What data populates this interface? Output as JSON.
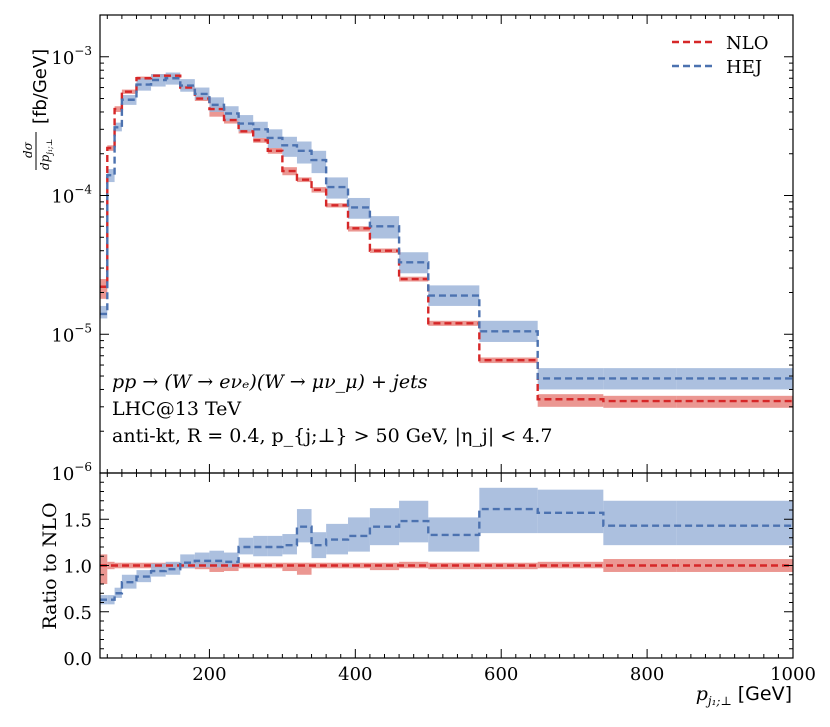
{
  "chart_data": {
    "type": "line",
    "x_edges": [
      50,
      60,
      70,
      80,
      100,
      120,
      140,
      160,
      180,
      200,
      220,
      240,
      260,
      280,
      300,
      320,
      340,
      360,
      390,
      420,
      460,
      500,
      570,
      650,
      740,
      840,
      1000
    ],
    "xlim": [
      50,
      1000
    ],
    "xticks": [
      200,
      400,
      600,
      800,
      1000
    ],
    "xtick_labels": [
      "200",
      "400",
      "600",
      "800",
      "1000"
    ],
    "xlabel_math": "p",
    "xlabel_sub": "j₁;⊥",
    "xlabel_unit": "[GeV]",
    "legend": {
      "position": "top-right",
      "entries": [
        {
          "label": "NLO",
          "color": "#d62728"
        },
        {
          "label": "HEJ",
          "color": "#4c72b0"
        }
      ]
    },
    "annotations": [
      "pp → (W → eνₑ)(W → μν_μ) + jets",
      "LHC@13 TeV",
      "anti-kt, R = 0.4, p_{j;⊥} > 50 GeV, |η_j| < 4.7"
    ],
    "top_panel": {
      "yscale": "log",
      "ylim": [
        1e-06,
        0.002
      ],
      "ytick_labels": [
        {
          "value": 1e-06,
          "mant": "10",
          "exp": "−6"
        },
        {
          "value": 1e-05,
          "mant": "10",
          "exp": "−5"
        },
        {
          "value": 0.0001,
          "mant": "10",
          "exp": "−4"
        },
        {
          "value": 0.001,
          "mant": "10",
          "exp": "−3"
        }
      ],
      "ylabel_frac_num": "dσ",
      "ylabel_frac_den": "dp",
      "ylabel_frac_den_sub": "j₁;⊥",
      "ylabel_unit": "[fb/GeV]",
      "series": [
        {
          "name": "NLO",
          "color": "#d62728",
          "band_color": "#e8857f",
          "values": [
            2.2e-05,
            0.00022,
            0.00042,
            0.00056,
            0.0007,
            0.00073,
            0.00073,
            0.0006,
            0.0005,
            0.00042,
            0.00035,
            0.00029,
            0.00025,
            0.00021,
            0.00015,
            0.00013,
            0.00011,
            8.5e-05,
            5.8e-05,
            4e-05,
            2.5e-05,
            1.2e-05,
            6.5e-06,
            3.4e-06,
            3.3e-06,
            3.3e-06
          ],
          "band_lo": [
            1.8e-05,
            0.00021,
            0.0004,
            0.00054,
            0.00068,
            0.00071,
            0.00071,
            0.00058,
            0.00048,
            0.00037,
            0.00033,
            0.00028,
            0.00024,
            0.0002,
            0.00014,
            0.000125,
            0.000105,
            8.2e-05,
            5.5e-05,
            3.85e-05,
            2.4e-05,
            1.15e-05,
            6.2e-06,
            3e-06,
            2.95e-06,
            2.95e-06
          ],
          "band_hi": [
            2.5e-05,
            0.00023,
            0.00044,
            0.00058,
            0.00072,
            0.00075,
            0.00075,
            0.00062,
            0.00052,
            0.00044,
            0.00036,
            0.0003,
            0.00026,
            0.00022,
            0.00016,
            0.000135,
            0.000115,
            8.8e-05,
            6e-05,
            4.15e-05,
            2.6e-05,
            1.25e-05,
            6.8e-06,
            3.7e-06,
            3.6e-06,
            3.6e-06
          ]
        },
        {
          "name": "HEJ",
          "color": "#4c72b0",
          "band_color": "#9db5d9",
          "values": [
            1.4e-05,
            0.00014,
            0.00031,
            0.00049,
            0.00063,
            0.00068,
            0.0007,
            0.00062,
            0.00054,
            0.00045,
            0.00039,
            0.00033,
            0.0003,
            0.00026,
            0.00023,
            0.00021,
            0.00018,
            0.000115,
            8.2e-05,
            6e-05,
            3.3e-05,
            1.9e-05,
            1.05e-05,
            4.8e-06,
            4.8e-06,
            4.8e-06
          ],
          "band_lo": [
            1.3e-05,
            0.000125,
            0.00029,
            0.00045,
            0.00057,
            0.00061,
            0.00063,
            0.00056,
            0.00049,
            0.0004,
            0.000345,
            0.00029,
            0.00026,
            0.00022,
            0.00019,
            0.00017,
            0.000145,
            9.5e-05,
            6.8e-05,
            4.9e-05,
            2.75e-05,
            1.6e-05,
            8.8e-06,
            4e-06,
            4e-06,
            4e-06
          ],
          "band_hi": [
            1.6e-05,
            0.000155,
            0.000335,
            0.00053,
            0.0007,
            0.00075,
            0.00077,
            0.00069,
            0.0006,
            0.00051,
            0.00044,
            0.00038,
            0.00034,
            0.0003,
            0.000265,
            0.000245,
            0.00021,
            0.000135,
            9.6e-05,
            7.1e-05,
            3.9e-05,
            2.25e-05,
            1.25e-05,
            5.7e-06,
            5.7e-06,
            5.7e-06
          ]
        }
      ]
    },
    "ratio_panel": {
      "ylim": [
        0.0,
        2.0
      ],
      "yticks": [
        0.0,
        0.5,
        1.0,
        1.5
      ],
      "ytick_labels": [
        "0.0",
        "0.5",
        "1.0",
        "1.5"
      ],
      "ylabel": "Ratio to NLO",
      "series": [
        {
          "name": "NLO",
          "color": "#d62728",
          "band_color": "#e8857f",
          "values": [
            1.0,
            1.0,
            1.0,
            1.0,
            1.0,
            1.0,
            1.0,
            1.0,
            1.0,
            1.0,
            1.0,
            1.0,
            1.0,
            1.0,
            1.0,
            1.0,
            1.0,
            1.0,
            1.0,
            1.0,
            1.0,
            1.0,
            1.0,
            1.0,
            1.0,
            1.0
          ],
          "band_lo": [
            0.8,
            0.96,
            0.97,
            0.97,
            0.97,
            0.97,
            0.97,
            0.97,
            0.96,
            0.93,
            0.94,
            0.97,
            0.97,
            0.97,
            0.94,
            0.9,
            0.97,
            0.97,
            0.97,
            0.95,
            0.97,
            0.96,
            0.96,
            0.97,
            0.93,
            0.93
          ],
          "band_hi": [
            1.12,
            1.04,
            1.03,
            1.03,
            1.03,
            1.03,
            1.03,
            1.03,
            1.04,
            1.04,
            1.03,
            1.03,
            1.03,
            1.03,
            1.03,
            1.03,
            1.03,
            1.03,
            1.03,
            1.03,
            1.04,
            1.03,
            1.03,
            1.04,
            1.07,
            1.07
          ]
        },
        {
          "name": "HEJ",
          "color": "#4c72b0",
          "band_color": "#9db5d9",
          "values": [
            0.63,
            0.63,
            0.7,
            0.82,
            0.88,
            0.94,
            0.96,
            1.03,
            1.05,
            1.05,
            1.04,
            1.2,
            1.2,
            1.2,
            1.22,
            1.42,
            1.22,
            1.28,
            1.32,
            1.42,
            1.48,
            1.33,
            1.61,
            1.57,
            1.43,
            1.43
          ],
          "band_lo": [
            0.58,
            0.58,
            0.65,
            0.75,
            0.82,
            0.88,
            0.9,
            0.97,
            0.98,
            0.98,
            0.98,
            1.12,
            1.1,
            1.1,
            1.12,
            1.25,
            1.08,
            1.12,
            1.15,
            1.22,
            1.25,
            1.15,
            1.35,
            1.35,
            1.22,
            1.22
          ],
          "band_hi": [
            0.68,
            0.68,
            0.76,
            0.9,
            0.95,
            1.02,
            1.04,
            1.12,
            1.14,
            1.16,
            1.14,
            1.3,
            1.32,
            1.32,
            1.34,
            1.61,
            1.36,
            1.45,
            1.52,
            1.62,
            1.7,
            1.52,
            1.84,
            1.82,
            1.7,
            1.7
          ]
        }
      ]
    }
  }
}
